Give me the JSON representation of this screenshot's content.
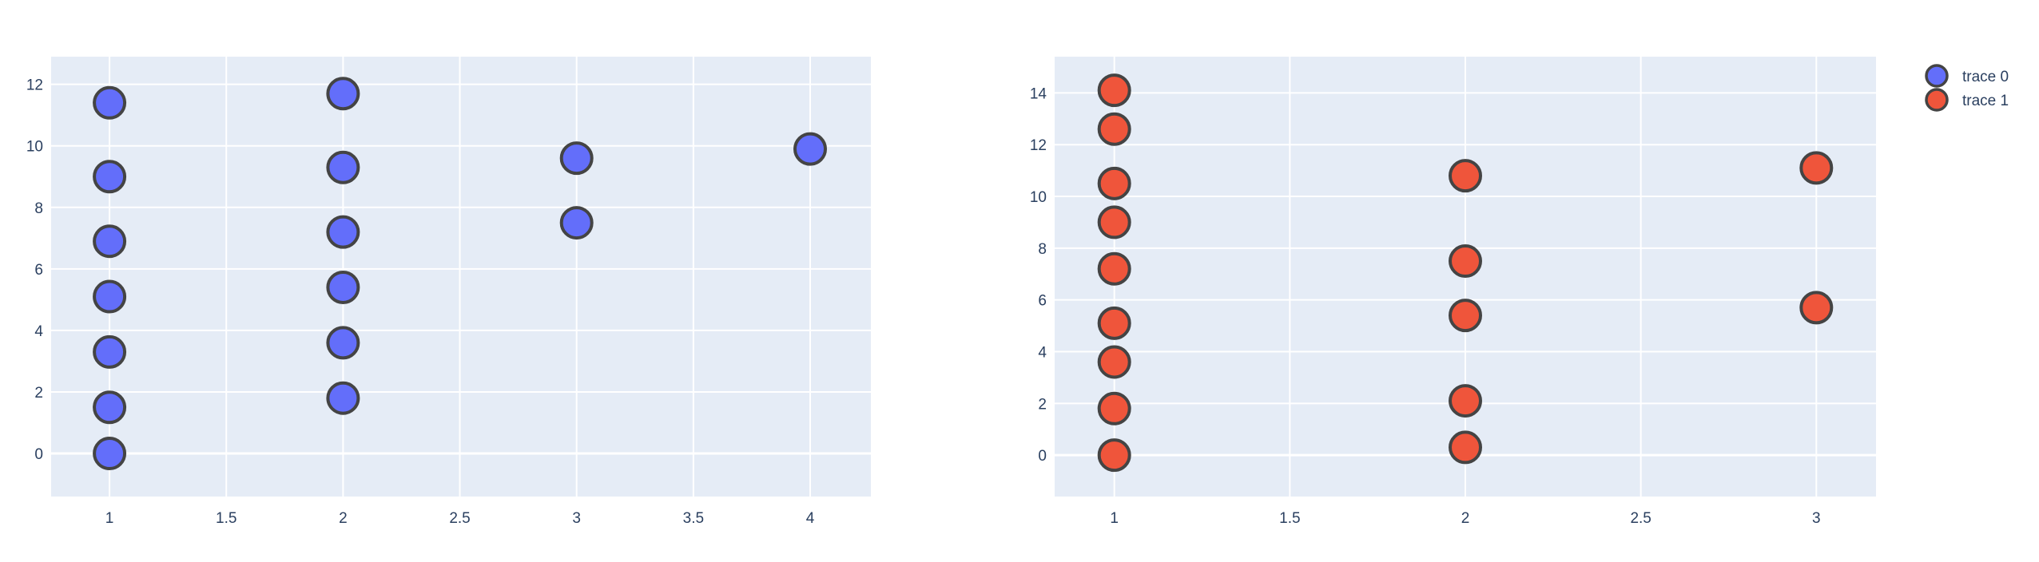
{
  "chart_data": [
    {
      "type": "scatter",
      "title": "",
      "xlabel": "",
      "ylabel": "",
      "xlim": [
        0.75,
        4.26
      ],
      "ylim": [
        -1.4,
        12.9
      ],
      "xticks": [
        "1",
        "1.5",
        "2",
        "2.5",
        "3",
        "3.5",
        "4"
      ],
      "xtick_values": [
        1,
        1.5,
        2,
        2.5,
        3,
        3.5,
        4
      ],
      "yticks": [
        "0",
        "2",
        "4",
        "6",
        "8",
        "10",
        "12"
      ],
      "ytick_values": [
        0,
        2,
        4,
        6,
        8,
        10,
        12
      ],
      "grid": true,
      "series": [
        {
          "name": "trace 0",
          "color": "#636efa",
          "points": [
            {
              "x": 1,
              "y": 0
            },
            {
              "x": 1,
              "y": 1.5
            },
            {
              "x": 1,
              "y": 3.3
            },
            {
              "x": 1,
              "y": 5.1
            },
            {
              "x": 1,
              "y": 6.9
            },
            {
              "x": 1,
              "y": 9.0
            },
            {
              "x": 1,
              "y": 11.4
            },
            {
              "x": 2,
              "y": 1.8
            },
            {
              "x": 2,
              "y": 3.6
            },
            {
              "x": 2,
              "y": 5.4
            },
            {
              "x": 2,
              "y": 7.2
            },
            {
              "x": 2,
              "y": 9.3
            },
            {
              "x": 2,
              "y": 11.7
            },
            {
              "x": 3,
              "y": 7.5
            },
            {
              "x": 3,
              "y": 9.6
            },
            {
              "x": 4,
              "y": 9.9
            }
          ]
        }
      ]
    },
    {
      "type": "scatter",
      "title": "",
      "xlabel": "",
      "ylabel": "",
      "xlim": [
        0.83,
        3.17
      ],
      "ylim": [
        -1.6,
        15.4
      ],
      "xticks": [
        "1",
        "1.5",
        "2",
        "2.5",
        "3"
      ],
      "xtick_values": [
        1,
        1.5,
        2,
        2.5,
        3
      ],
      "yticks": [
        "0",
        "2",
        "4",
        "6",
        "8",
        "10",
        "12",
        "14"
      ],
      "ytick_values": [
        0,
        2,
        4,
        6,
        8,
        10,
        12,
        14
      ],
      "grid": true,
      "series": [
        {
          "name": "trace 1",
          "color": "#ef553b",
          "points": [
            {
              "x": 1,
              "y": 0
            },
            {
              "x": 1,
              "y": 1.8
            },
            {
              "x": 1,
              "y": 3.6
            },
            {
              "x": 1,
              "y": 5.1
            },
            {
              "x": 1,
              "y": 7.2
            },
            {
              "x": 1,
              "y": 9.0
            },
            {
              "x": 1,
              "y": 10.5
            },
            {
              "x": 1,
              "y": 12.6
            },
            {
              "x": 1,
              "y": 14.1
            },
            {
              "x": 2,
              "y": 0.3
            },
            {
              "x": 2,
              "y": 2.1
            },
            {
              "x": 2,
              "y": 5.4
            },
            {
              "x": 2,
              "y": 7.5
            },
            {
              "x": 2,
              "y": 10.8
            },
            {
              "x": 3,
              "y": 5.7
            },
            {
              "x": 3,
              "y": 11.1
            }
          ]
        }
      ]
    }
  ],
  "legend": {
    "placement": "top-right",
    "items": [
      {
        "label": "trace 0",
        "color": "#636efa"
      },
      {
        "label": "trace 1",
        "color": "#ef553b"
      }
    ]
  },
  "style": {
    "plot_bg": "#e5ecf6",
    "grid_color": "#ffffff",
    "marker_line_color": "#444444",
    "tick_color": "#2a3f5f"
  }
}
